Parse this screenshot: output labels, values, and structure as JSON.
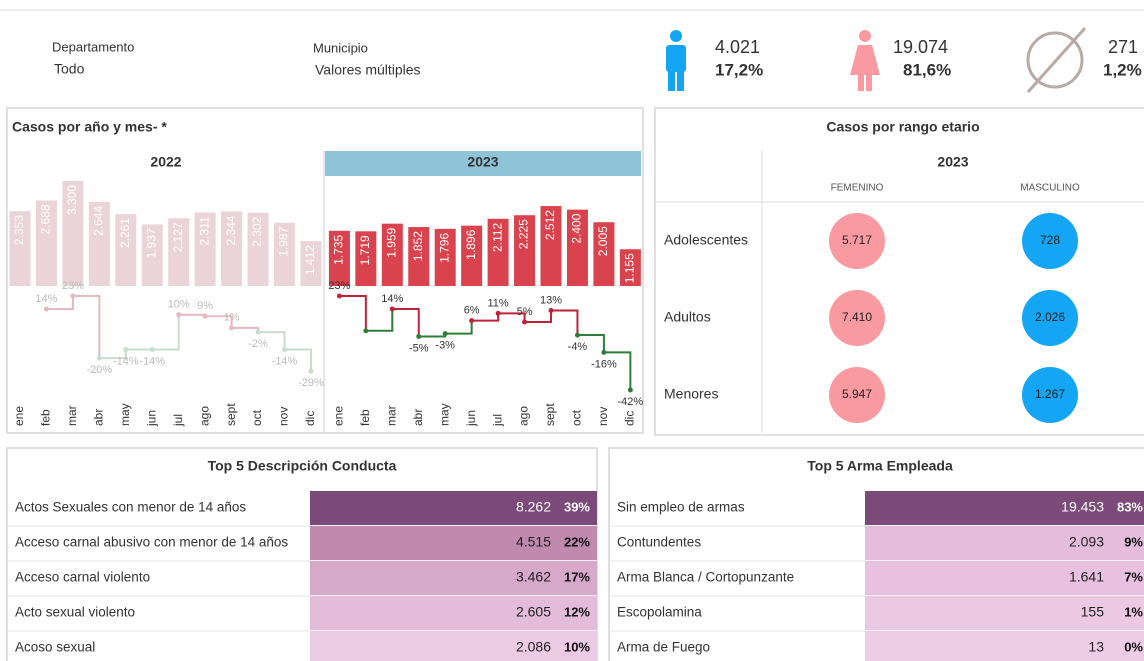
{
  "filters": [
    {
      "label": "Departamento",
      "value": "Todo"
    },
    {
      "label": "Municipio",
      "value": "Valores múltiples"
    }
  ],
  "kpis": [
    {
      "count": {
        "value": 4021,
        "label": "4.021"
      },
      "share": {
        "value": 17.2,
        "label": "17,2%"
      }
    },
    {
      "count": {
        "value": 19074,
        "label": "19.074"
      },
      "share": {
        "value": 81.6,
        "label": "81,6%"
      }
    },
    {
      "count": 271,
      "share": {
        "value": 1.2,
        "label": "1,2%"
      }
    }
  ],
  "chart_data": [
    {
      "type": "step-bar",
      "title": "Casos por año y mes- *",
      "groups": [
        {
          "name": "2022",
          "color": "#ead4d9",
          "line_up": "#e6b8c0",
          "line_down": "#c9dccd"
        },
        {
          "name": "2023",
          "color": "#d8434e",
          "line_up": "#c0223a",
          "line_down": "#2e7d3a"
        }
      ],
      "categories": [
        "ene",
        "feb",
        "mar",
        "abr",
        "may",
        "jun",
        "jul",
        "ago",
        "sept",
        "oct",
        "nov",
        "dic",
        "ene",
        "feb",
        "mar",
        "abr",
        "may",
        "jun",
        "jul",
        "ago",
        "sept",
        "oct",
        "nov",
        "dic"
      ],
      "values": [
        2353,
        2688,
        3300,
        2644,
        2261,
        1937,
        2127,
        2311,
        2344,
        2302,
        1987,
        1412,
        1735,
        1719,
        1959,
        1852,
        1796,
        1896,
        2112,
        2225,
        2512,
        2400,
        2005,
        1155
      ],
      "value_labels": [
        "2.353",
        "2.688",
        "3.300",
        "2.644",
        "2.261",
        "1.937",
        "2.127",
        "2.311",
        "2.344",
        "2.302",
        "1.987",
        "1.412",
        "1.735",
        "1.719",
        "1.959",
        "1.852",
        "1.796",
        "1.896",
        "2.112",
        "2.225",
        "2.512",
        "2.400",
        "2.005",
        "1.155"
      ],
      "change": {
        "values": [
          null,
          14,
          23,
          -20,
          -14,
          -14,
          10,
          9,
          1,
          -2,
          -14,
          -29,
          23,
          -1,
          14,
          -5,
          -3,
          6,
          11,
          5,
          13,
          -4,
          -16,
          -42
        ],
        "value_labels": [
          null,
          "14%",
          "23%",
          "-20%",
          "-14%",
          "-14%",
          "10%",
          "9%",
          "1%",
          "-2%",
          "-14%",
          "-29%",
          "23%",
          null,
          "14%",
          "-5%",
          "-3%",
          "6%",
          "11%",
          "5%",
          "13%",
          "-4%",
          "-16%",
          "-42%"
        ]
      }
    },
    {
      "type": "circle-matrix",
      "title": "Casos por rango etario",
      "year": "2023",
      "categories": [
        "Adolescentes",
        "Adultos",
        "Menores"
      ],
      "series": [
        {
          "name": "FEMENINO",
          "color": "#f99aa0",
          "values": [
            5717,
            7410,
            5947
          ],
          "value_labels": [
            "5.717",
            "7.410",
            "5.947"
          ]
        },
        {
          "name": "MASCULINO",
          "color": "#14a5f5",
          "values": [
            728,
            2026,
            1267
          ],
          "value_labels": [
            "728",
            "2.026",
            "1.267"
          ]
        }
      ]
    },
    {
      "type": "table-bar",
      "title": "Top 5 Descripción Conducta",
      "categories": [
        "Actos Sexuales con menor de 14 años",
        "Acceso carnal abusivo con menor de 14 años",
        "Acceso carnal violento",
        "Acto sexual violento",
        "Acoso sexual"
      ],
      "values": [
        8262,
        4515,
        3462,
        2605,
        2086
      ],
      "value_labels": [
        "8.262",
        "4.515",
        "3.462",
        "2.605",
        "2.086"
      ],
      "shares": [
        39,
        22,
        17,
        12,
        10
      ],
      "share_labels": [
        "39%",
        "22%",
        "17%",
        "12%",
        "10%"
      ],
      "colors": [
        "#7b4a78",
        "#c08aae",
        "#d6a8c9",
        "#e3bcd9",
        "#ebcae3"
      ]
    },
    {
      "type": "table-bar",
      "title": "Top 5 Arma Empleada",
      "categories": [
        "Sin empleo de armas",
        "Contundentes",
        "Arma Blanca / Cortopunzante",
        "Escopolamina",
        "Arma de Fuego"
      ],
      "values": [
        19453,
        2093,
        1641,
        155,
        13
      ],
      "value_labels": [
        "19.453",
        "2.093",
        "1.641",
        "155",
        "13"
      ],
      "shares": [
        83,
        9,
        7,
        1,
        0
      ],
      "share_labels": [
        "83%",
        "9%",
        "7%",
        "1%",
        "0%"
      ],
      "colors": [
        "#7b4a78",
        "#e4bcdc",
        "#e7c1df",
        "#ebc9e3",
        "#edcde5"
      ]
    }
  ]
}
